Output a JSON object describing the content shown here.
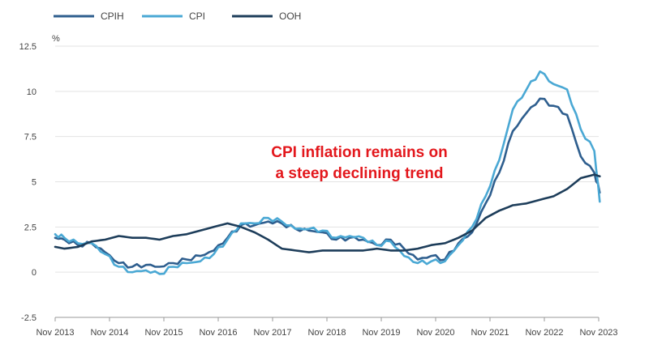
{
  "chart_data": {
    "type": "line",
    "title": "",
    "xlabel": "",
    "ylabel": "%",
    "ylim": [
      -2.5,
      12.5
    ],
    "yticks": [
      "12.5",
      "10",
      "7.5",
      "5",
      "2.5",
      "0",
      "-2.5"
    ],
    "ytick_values": [
      12.5,
      10,
      7.5,
      5,
      2.5,
      0,
      -2.5
    ],
    "xticks": [
      "Nov 2013",
      "Nov 2014",
      "Nov 2015",
      "Nov 2016",
      "Nov 2017",
      "Nov 2018",
      "Nov 2019",
      "Nov 2020",
      "Nov 2021",
      "Nov 2022",
      "Nov 2023"
    ],
    "grid": "horizontal",
    "legend_placement": "top-left",
    "annotation": {
      "line1": "CPI inflation remains on",
      "line2": "a steep declining trend",
      "color": "#e3171c"
    },
    "series": [
      {
        "name": "CPIH",
        "color": "#2e5e8e",
        "points": [
          [
            2013.83,
            1.9
          ],
          [
            2014.0,
            1.8
          ],
          [
            2014.25,
            1.5
          ],
          [
            2014.5,
            1.6
          ],
          [
            2014.75,
            1.1
          ],
          [
            2015.0,
            0.5
          ],
          [
            2015.25,
            0.3
          ],
          [
            2015.5,
            0.4
          ],
          [
            2015.75,
            0.3
          ],
          [
            2016.0,
            0.5
          ],
          [
            2016.25,
            0.7
          ],
          [
            2016.5,
            0.9
          ],
          [
            2016.75,
            1.2
          ],
          [
            2017.0,
            1.9
          ],
          [
            2017.25,
            2.6
          ],
          [
            2017.5,
            2.6
          ],
          [
            2017.75,
            2.8
          ],
          [
            2018.0,
            2.7
          ],
          [
            2018.25,
            2.4
          ],
          [
            2018.5,
            2.3
          ],
          [
            2018.75,
            2.2
          ],
          [
            2019.0,
            1.8
          ],
          [
            2019.25,
            1.9
          ],
          [
            2019.5,
            1.8
          ],
          [
            2019.75,
            1.5
          ],
          [
            2020.0,
            1.8
          ],
          [
            2020.25,
            1.3
          ],
          [
            2020.5,
            0.7
          ],
          [
            2020.75,
            0.9
          ],
          [
            2021.0,
            0.7
          ],
          [
            2021.25,
            1.6
          ],
          [
            2021.5,
            2.2
          ],
          [
            2021.75,
            3.8
          ],
          [
            2022.0,
            5.5
          ],
          [
            2022.25,
            7.8
          ],
          [
            2022.5,
            8.8
          ],
          [
            2022.75,
            9.6
          ],
          [
            2023.0,
            9.2
          ],
          [
            2023.25,
            8.7
          ],
          [
            2023.5,
            6.4
          ],
          [
            2023.75,
            5.5
          ],
          [
            2023.85,
            4.4
          ]
        ]
      },
      {
        "name": "CPI",
        "color": "#4aa8d4",
        "points": [
          [
            2013.83,
            2.1
          ],
          [
            2014.0,
            1.9
          ],
          [
            2014.25,
            1.6
          ],
          [
            2014.5,
            1.6
          ],
          [
            2014.75,
            1.0
          ],
          [
            2015.0,
            0.3
          ],
          [
            2015.25,
            0.0
          ],
          [
            2015.5,
            0.1
          ],
          [
            2015.75,
            -0.1
          ],
          [
            2016.0,
            0.3
          ],
          [
            2016.25,
            0.5
          ],
          [
            2016.5,
            0.6
          ],
          [
            2016.75,
            1.0
          ],
          [
            2017.0,
            1.8
          ],
          [
            2017.25,
            2.7
          ],
          [
            2017.5,
            2.7
          ],
          [
            2017.75,
            3.0
          ],
          [
            2018.0,
            2.8
          ],
          [
            2018.25,
            2.4
          ],
          [
            2018.5,
            2.4
          ],
          [
            2018.75,
            2.3
          ],
          [
            2019.0,
            1.9
          ],
          [
            2019.25,
            2.0
          ],
          [
            2019.5,
            1.9
          ],
          [
            2019.75,
            1.5
          ],
          [
            2020.0,
            1.7
          ],
          [
            2020.25,
            0.9
          ],
          [
            2020.5,
            0.5
          ],
          [
            2020.75,
            0.6
          ],
          [
            2021.0,
            0.6
          ],
          [
            2021.25,
            1.5
          ],
          [
            2021.5,
            2.5
          ],
          [
            2021.75,
            4.2
          ],
          [
            2022.0,
            6.2
          ],
          [
            2022.25,
            9.0
          ],
          [
            2022.5,
            10.1
          ],
          [
            2022.75,
            11.1
          ],
          [
            2023.0,
            10.4
          ],
          [
            2023.25,
            10.1
          ],
          [
            2023.5,
            7.9
          ],
          [
            2023.75,
            6.7
          ],
          [
            2023.85,
            3.9
          ]
        ]
      },
      {
        "name": "OOH",
        "color": "#1d3d5a",
        "points": [
          [
            2013.83,
            1.4
          ],
          [
            2014.0,
            1.3
          ],
          [
            2014.25,
            1.4
          ],
          [
            2014.5,
            1.7
          ],
          [
            2014.75,
            1.8
          ],
          [
            2015.0,
            2.0
          ],
          [
            2015.25,
            1.9
          ],
          [
            2015.5,
            1.9
          ],
          [
            2015.75,
            1.8
          ],
          [
            2016.0,
            2.0
          ],
          [
            2016.25,
            2.1
          ],
          [
            2016.5,
            2.3
          ],
          [
            2016.75,
            2.5
          ],
          [
            2017.0,
            2.7
          ],
          [
            2017.25,
            2.5
          ],
          [
            2017.5,
            2.2
          ],
          [
            2017.75,
            1.8
          ],
          [
            2018.0,
            1.3
          ],
          [
            2018.25,
            1.2
          ],
          [
            2018.5,
            1.1
          ],
          [
            2018.75,
            1.2
          ],
          [
            2019.0,
            1.2
          ],
          [
            2019.25,
            1.2
          ],
          [
            2019.5,
            1.2
          ],
          [
            2019.75,
            1.3
          ],
          [
            2020.0,
            1.2
          ],
          [
            2020.25,
            1.2
          ],
          [
            2020.5,
            1.3
          ],
          [
            2020.75,
            1.5
          ],
          [
            2021.0,
            1.6
          ],
          [
            2021.25,
            1.9
          ],
          [
            2021.5,
            2.3
          ],
          [
            2021.75,
            3.0
          ],
          [
            2022.0,
            3.4
          ],
          [
            2022.25,
            3.7
          ],
          [
            2022.5,
            3.8
          ],
          [
            2022.75,
            4.0
          ],
          [
            2023.0,
            4.2
          ],
          [
            2023.25,
            4.6
          ],
          [
            2023.5,
            5.2
          ],
          [
            2023.75,
            5.4
          ],
          [
            2023.85,
            5.3
          ]
        ]
      }
    ]
  }
}
